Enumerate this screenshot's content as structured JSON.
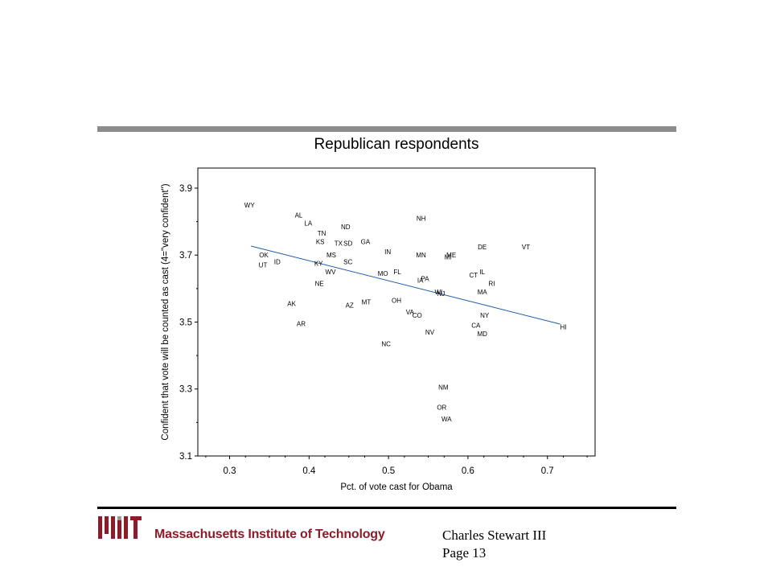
{
  "slide": {
    "org_name": "Massachusetts Institute of Technology",
    "author": "Charles Stewart III",
    "page_label": "Page 13"
  },
  "colors": {
    "fit_line": "#1f5fa8",
    "rule_top": "#8c8c8c",
    "mit_red": "#8b1c2a"
  },
  "chart_data": {
    "type": "scatter",
    "title": "Republican respondents",
    "xlabel": "Pct. of vote cast for Obama",
    "ylabel": "Confident that vote will be counted as cast (4=\"very confident\")",
    "xlim": [
      0.26,
      0.76
    ],
    "ylim": [
      3.1,
      3.96
    ],
    "xticks": [
      "0.3",
      "0.4",
      "0.5",
      "0.6",
      "0.7"
    ],
    "yticks": [
      "3.1",
      "3.3",
      "3.5",
      "3.7",
      "3.9"
    ],
    "grid": false,
    "fit_line": {
      "x": [
        0.327,
        0.716
      ],
      "y": [
        3.727,
        3.494
      ]
    },
    "points": [
      {
        "label": "WY",
        "x": 0.325,
        "y": 3.85
      },
      {
        "label": "AL",
        "x": 0.387,
        "y": 3.82
      },
      {
        "label": "LA",
        "x": 0.399,
        "y": 3.795
      },
      {
        "label": "TN",
        "x": 0.416,
        "y": 3.765
      },
      {
        "label": "ND",
        "x": 0.446,
        "y": 3.785
      },
      {
        "label": "KS",
        "x": 0.414,
        "y": 3.74
      },
      {
        "label": "TX",
        "x": 0.437,
        "y": 3.735
      },
      {
        "label": "SD",
        "x": 0.449,
        "y": 3.735
      },
      {
        "label": "GA",
        "x": 0.471,
        "y": 3.74
      },
      {
        "label": "MS",
        "x": 0.428,
        "y": 3.7
      },
      {
        "label": "OK",
        "x": 0.343,
        "y": 3.7
      },
      {
        "label": "ID",
        "x": 0.36,
        "y": 3.68
      },
      {
        "label": "UT",
        "x": 0.342,
        "y": 3.67
      },
      {
        "label": "KY",
        "x": 0.412,
        "y": 3.675
      },
      {
        "label": "SC",
        "x": 0.449,
        "y": 3.68
      },
      {
        "label": "WV",
        "x": 0.427,
        "y": 3.65
      },
      {
        "label": "NE",
        "x": 0.413,
        "y": 3.615
      },
      {
        "label": "IN",
        "x": 0.499,
        "y": 3.71
      },
      {
        "label": "MO",
        "x": 0.493,
        "y": 3.645
      },
      {
        "label": "FL",
        "x": 0.511,
        "y": 3.65
      },
      {
        "label": "NH",
        "x": 0.541,
        "y": 3.81
      },
      {
        "label": "MN",
        "x": 0.541,
        "y": 3.7
      },
      {
        "label": "MI",
        "x": 0.575,
        "y": 3.695
      },
      {
        "label": "ME",
        "x": 0.579,
        "y": 3.7
      },
      {
        "label": "IA",
        "x": 0.54,
        "y": 3.625
      },
      {
        "label": "PA",
        "x": 0.546,
        "y": 3.63
      },
      {
        "label": "WI",
        "x": 0.563,
        "y": 3.59
      },
      {
        "label": "NJ",
        "x": 0.566,
        "y": 3.585
      },
      {
        "label": "DE",
        "x": 0.618,
        "y": 3.725
      },
      {
        "label": "VT",
        "x": 0.673,
        "y": 3.725
      },
      {
        "label": "CT",
        "x": 0.607,
        "y": 3.64
      },
      {
        "label": "IL",
        "x": 0.618,
        "y": 3.65
      },
      {
        "label": "RI",
        "x": 0.63,
        "y": 3.615
      },
      {
        "label": "MA",
        "x": 0.618,
        "y": 3.59
      },
      {
        "label": "NY",
        "x": 0.621,
        "y": 3.52
      },
      {
        "label": "CA",
        "x": 0.61,
        "y": 3.49
      },
      {
        "label": "MD",
        "x": 0.618,
        "y": 3.465
      },
      {
        "label": "HI",
        "x": 0.72,
        "y": 3.485
      },
      {
        "label": "AK",
        "x": 0.378,
        "y": 3.555
      },
      {
        "label": "AR",
        "x": 0.39,
        "y": 3.495
      },
      {
        "label": "AZ",
        "x": 0.451,
        "y": 3.55
      },
      {
        "label": "MT",
        "x": 0.472,
        "y": 3.56
      },
      {
        "label": "OH",
        "x": 0.51,
        "y": 3.565
      },
      {
        "label": "VA",
        "x": 0.527,
        "y": 3.53
      },
      {
        "label": "CO",
        "x": 0.536,
        "y": 3.52
      },
      {
        "label": "NV",
        "x": 0.552,
        "y": 3.47
      },
      {
        "label": "NC",
        "x": 0.497,
        "y": 3.435
      },
      {
        "label": "NM",
        "x": 0.569,
        "y": 3.305
      },
      {
        "label": "OR",
        "x": 0.567,
        "y": 3.245
      },
      {
        "label": "WA",
        "x": 0.573,
        "y": 3.21
      }
    ]
  }
}
